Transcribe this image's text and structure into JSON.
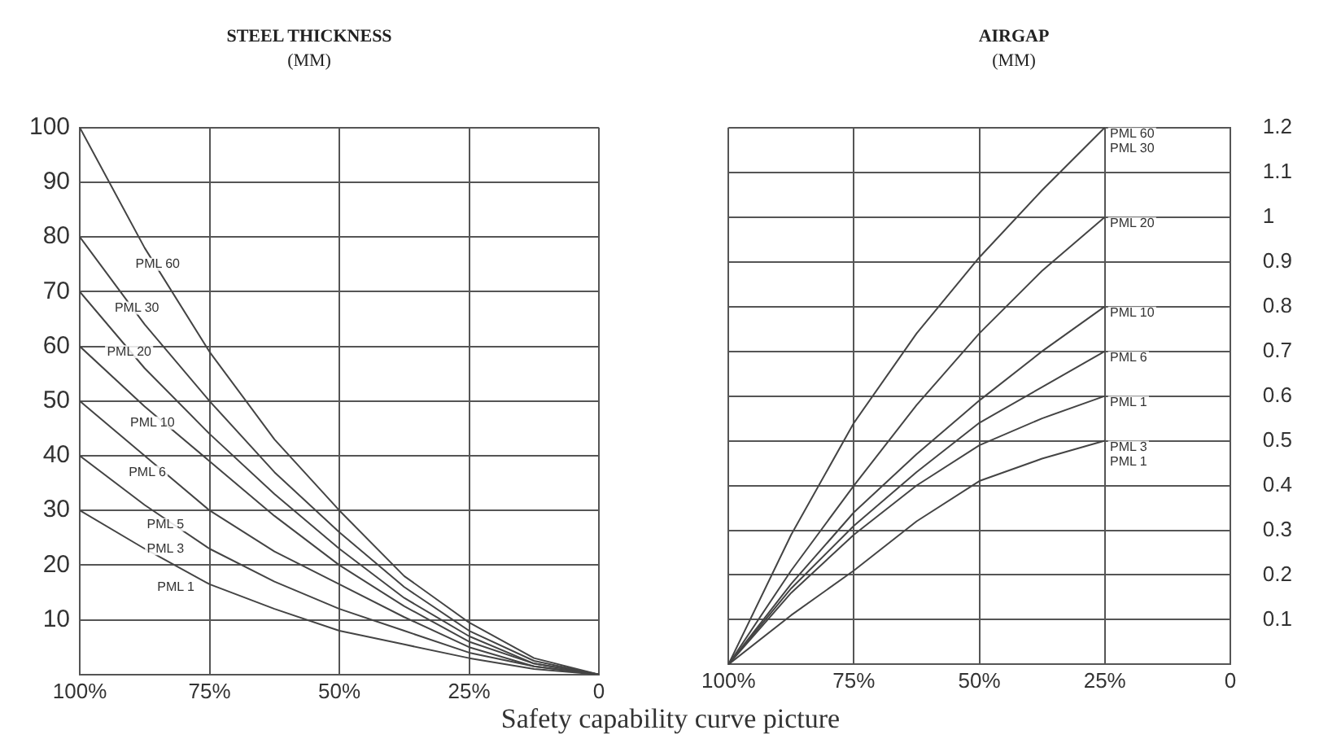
{
  "chart_data": [
    {
      "type": "line",
      "title": "STEEL THICKNESS",
      "subtitle": "(MM)",
      "x": [
        100,
        87.5,
        75,
        62.5,
        50,
        37.5,
        25,
        12.5,
        0
      ],
      "series": [
        {
          "color": "#444444",
          "values": [
            100,
            78,
            59,
            43,
            30,
            18,
            9.5,
            3,
            0
          ]
        },
        {
          "color": "#444444",
          "values": [
            80,
            64,
            50,
            37,
            26,
            16,
            8,
            2.5,
            0
          ]
        },
        {
          "color": "#444444",
          "values": [
            70,
            56,
            44,
            33,
            23,
            14,
            7,
            2,
            0
          ]
        },
        {
          "color": "#444444",
          "values": [
            60,
            49,
            39,
            29,
            20,
            12.5,
            6,
            2,
            0
          ]
        },
        {
          "color": "#444444",
          "values": [
            50,
            40,
            30,
            22.5,
            16.5,
            10.5,
            5,
            1.5,
            0
          ]
        },
        {
          "color": "#444444",
          "values": [
            40,
            31,
            23,
            17,
            12,
            8,
            4,
            1.5,
            0
          ]
        },
        {
          "color": "#444444",
          "values": [
            30,
            23,
            16.5,
            12,
            8,
            5.5,
            3,
            1,
            0
          ]
        }
      ],
      "xlim": [
        100,
        0
      ],
      "xticks": [
        {
          "value": 100,
          "label": "100%"
        },
        {
          "value": 75,
          "label": "75%"
        },
        {
          "value": 50,
          "label": "50%"
        },
        {
          "value": 25,
          "label": "25%"
        },
        0
      ],
      "ylim": [
        0,
        100
      ],
      "yticks": [
        10,
        20,
        30,
        40,
        50,
        60,
        70,
        80,
        90,
        100
      ],
      "grid": true,
      "legend": false,
      "marker": "none",
      "annotations": [
        {
          "text": "PML 60",
          "x": 85,
          "y": 75
        },
        {
          "text": "PML 30",
          "x": 89,
          "y": 67
        },
        {
          "text": "PML 20",
          "x": 90.5,
          "y": 59
        },
        {
          "text": "PML 10",
          "x": 86,
          "y": 46
        },
        {
          "text": "PML 6",
          "x": 87,
          "y": 37
        },
        {
          "text": "PML 5",
          "x": 83.5,
          "y": 27.4
        },
        {
          "text": "PML 3",
          "x": 83.5,
          "y": 23
        },
        {
          "text": "PML 1",
          "x": 81.5,
          "y": 16
        },
        "Safety capability curve picture"
      ]
    },
    {
      "type": "line",
      "title": "AIRGAP",
      "subtitle": "(MM)",
      "x": [
        100,
        87.5,
        75,
        62.5,
        50,
        37.5,
        25
      ],
      "series": [
        {
          "color": "#444444",
          "values": [
            0,
            0.29,
            0.54,
            0.74,
            0.91,
            1.06,
            1.2
          ]
        },
        {
          "color": "#444444",
          "values": [
            0,
            0.21,
            0.4,
            0.58,
            0.74,
            0.88,
            1.0
          ]
        },
        {
          "color": "#444444",
          "values": [
            0,
            0.18,
            0.34,
            0.47,
            0.59,
            0.7,
            0.8
          ]
        },
        {
          "color": "#444444",
          "values": [
            0,
            0.17,
            0.31,
            0.43,
            0.54,
            0.62,
            0.7
          ]
        },
        {
          "color": "#444444",
          "values": [
            0,
            0.16,
            0.29,
            0.4,
            0.49,
            0.55,
            0.6
          ]
        },
        {
          "color": "#444444",
          "values": [
            0,
            0.11,
            0.21,
            0.32,
            0.41,
            0.46,
            0.5
          ]
        }
      ],
      "xlim": [
        100,
        0
      ],
      "xticks": [
        {
          "value": 100,
          "label": "100%"
        },
        {
          "value": 75,
          "label": "75%"
        },
        {
          "value": 50,
          "label": "50%"
        },
        {
          "value": 25,
          "label": "25%"
        },
        0
      ],
      "ylim": [
        0,
        1.2
      ],
      "yticks": [
        0.1,
        0.2,
        0.3,
        0.4,
        0.5,
        0.6,
        0.7,
        0.8,
        0.9,
        1.0,
        1.1,
        1.2
      ],
      "grid": true,
      "legend": false,
      "marker": "none",
      "annotations": [
        {
          "text": "PML 60",
          "x": 25,
          "y": 1.2
        },
        {
          "text": "PML 30",
          "x": 25,
          "y": 1.2
        },
        {
          "text": "PML 20",
          "x": 25,
          "y": 1.0
        },
        {
          "text": "PML 10",
          "x": 25,
          "y": 0.8
        },
        {
          "text": "PML 6",
          "x": 25,
          "y": 0.7
        },
        {
          "text": "PML 1",
          "x": 25,
          "y": 0.6
        },
        {
          "text": "PML 3",
          "x": 25,
          "y": 0.5
        },
        {
          "text": "PML 1",
          "x": 25,
          "y": 0.5
        }
      ]
    }
  ]
}
